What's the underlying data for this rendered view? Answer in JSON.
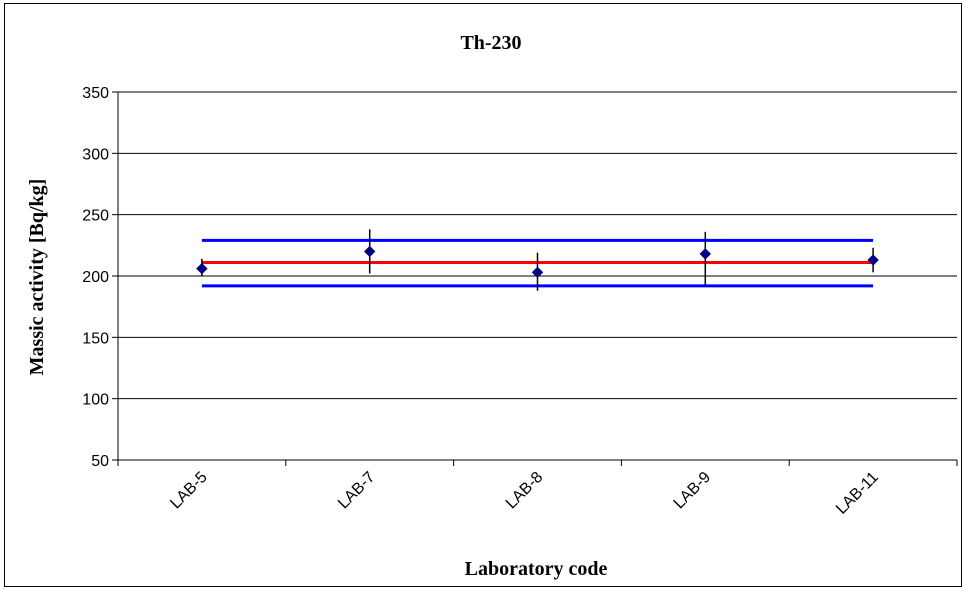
{
  "chart_data": {
    "type": "scatter",
    "title": "Th-230",
    "xlabel": "Laboratory code",
    "ylabel": "Massic activity [Bq/kg]",
    "categories": [
      "LAB-5",
      "LAB-7",
      "LAB-8",
      "LAB-9",
      "LAB-11"
    ],
    "values": [
      206,
      220,
      203,
      218,
      213
    ],
    "error_low": [
      200,
      202,
      188,
      193,
      203
    ],
    "error_high": [
      214,
      238,
      219,
      236,
      223
    ],
    "reference_value": 211,
    "reference_upper": 229,
    "reference_lower": 192,
    "ylim": [
      50,
      350
    ],
    "yticks": [
      50,
      100,
      150,
      200,
      250,
      300,
      350
    ],
    "grid": true,
    "colors": {
      "marker": "#000080",
      "reference_line": "#ff0000",
      "limit_lines": "#0000ff"
    }
  }
}
